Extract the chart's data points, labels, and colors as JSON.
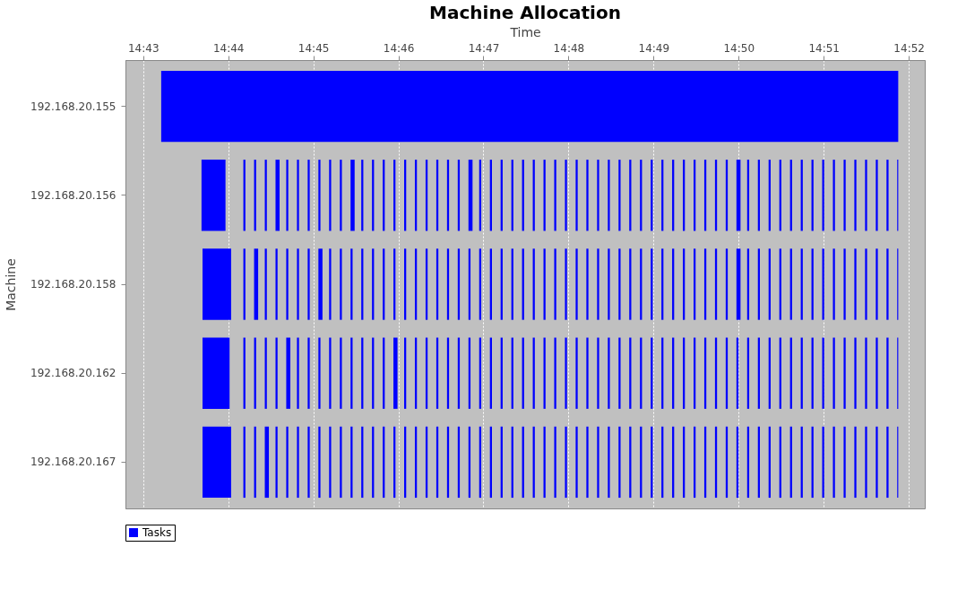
{
  "chart_data": {
    "type": "bar",
    "orientation": "horizontal",
    "title": "Machine Allocation",
    "xlabel": "Time",
    "ylabel": "Machine",
    "categories": [
      "192.168.20.155",
      "192.168.20.156",
      "192.168.20.158",
      "192.168.20.162",
      "192.168.20.167"
    ],
    "xlim": [
      14.7132,
      14.8698
    ],
    "xticks": [
      {
        "value": 14.716667,
        "label": "14:43"
      },
      {
        "value": 14.733333,
        "label": "14:44"
      },
      {
        "value": 14.75,
        "label": "14:45"
      },
      {
        "value": 14.766667,
        "label": "14:46"
      },
      {
        "value": 14.783333,
        "label": "14:47"
      },
      {
        "value": 14.8,
        "label": "14:48"
      },
      {
        "value": 14.816667,
        "label": "14:49"
      },
      {
        "value": 14.833333,
        "label": "14:50"
      },
      {
        "value": 14.85,
        "label": "14:51"
      },
      {
        "value": 14.866667,
        "label": "14:52"
      }
    ],
    "grid": "x",
    "legend": "bottom",
    "series": [
      {
        "name": "Tasks",
        "color": "#0000ff",
        "base": [
          14.7202,
          14.7281,
          14.7283,
          14.7283,
          14.7283
        ],
        "values": [
          0.1444,
          0.0047,
          0.0056,
          0.0053,
          0.0056
        ]
      },
      {
        "color": "#0000ff",
        "base": [
          null,
          14.7363,
          14.7363,
          14.7363,
          14.7363
        ],
        "values": [
          null,
          0.0004,
          0.0004,
          0.0004,
          0.0004
        ]
      },
      {
        "color": "#0000ff",
        "base": [
          null,
          14.7384,
          14.7384,
          14.7384,
          14.7384
        ],
        "values": [
          null,
          0.0004,
          0.0008,
          0.0004,
          0.0004
        ]
      },
      {
        "color": "#0000ff",
        "base": [
          null,
          14.7405,
          14.7405,
          14.7405,
          14.7405
        ],
        "values": [
          null,
          0.0004,
          0.0004,
          0.0004,
          0.0008
        ]
      },
      {
        "color": "#0000ff",
        "base": [
          null,
          14.7426,
          14.7426,
          14.7426,
          14.7426
        ],
        "values": [
          null,
          0.0008,
          0.0004,
          0.0004,
          0.0004
        ]
      },
      {
        "color": "#0000ff",
        "base": [
          null,
          14.7447,
          14.7447,
          14.7447,
          14.7447
        ],
        "values": [
          null,
          0.0004,
          0.0004,
          0.0008,
          0.0004
        ]
      },
      {
        "color": "#0000ff",
        "base": [
          null,
          14.7468,
          14.7468,
          14.7468,
          14.7468
        ],
        "values": [
          null,
          0.0004,
          0.0004,
          0.0004,
          0.0004
        ]
      },
      {
        "color": "#0000ff",
        "base": [
          null,
          14.7489,
          14.7489,
          14.7489,
          14.7489
        ],
        "values": [
          null,
          0.0004,
          0.0004,
          0.0004,
          0.0004
        ]
      },
      {
        "color": "#0000ff",
        "base": [
          null,
          14.751,
          14.751,
          14.751,
          14.751
        ],
        "values": [
          null,
          0.0004,
          0.0008,
          0.0004,
          0.0004
        ]
      },
      {
        "color": "#0000ff",
        "base": [
          null,
          14.7531,
          14.7531,
          14.7531,
          14.7531
        ],
        "values": [
          null,
          0.0004,
          0.0004,
          0.0004,
          0.0004
        ]
      },
      {
        "color": "#0000ff",
        "base": [
          null,
          14.7552,
          14.7552,
          14.7552,
          14.7552
        ],
        "values": [
          null,
          0.0004,
          0.0004,
          0.0004,
          0.0004
        ]
      },
      {
        "color": "#0000ff",
        "base": [
          null,
          14.7573,
          14.7573,
          14.7573,
          14.7573
        ],
        "values": [
          null,
          0.0008,
          0.0004,
          0.0004,
          0.0004
        ]
      },
      {
        "color": "#0000ff",
        "base": [
          null,
          14.7594,
          14.7594,
          14.7594,
          14.7594
        ],
        "values": [
          null,
          0.0004,
          0.0004,
          0.0004,
          0.0004
        ]
      },
      {
        "color": "#0000ff",
        "base": [
          null,
          14.7615,
          14.7615,
          14.7615,
          14.7615
        ],
        "values": [
          null,
          0.0004,
          0.0004,
          0.0004,
          0.0004
        ]
      },
      {
        "color": "#0000ff",
        "base": [
          null,
          14.7636,
          14.7636,
          14.7636,
          14.7636
        ],
        "values": [
          null,
          0.0004,
          0.0004,
          0.0004,
          0.0004
        ]
      },
      {
        "color": "#0000ff",
        "base": [
          null,
          14.7657,
          14.7657,
          14.7657,
          14.7657
        ],
        "values": [
          null,
          0.0004,
          0.0004,
          0.0008,
          0.0004
        ]
      },
      {
        "color": "#0000ff",
        "base": [
          null,
          14.7678,
          14.7678,
          14.7678,
          14.7678
        ],
        "values": [
          null,
          0.0004,
          0.0004,
          0.0004,
          0.0004
        ]
      },
      {
        "color": "#0000ff",
        "base": [
          null,
          14.7699,
          14.7699,
          14.7699,
          14.7699
        ],
        "values": [
          null,
          0.0004,
          0.0004,
          0.0004,
          0.0004
        ]
      },
      {
        "color": "#0000ff",
        "base": [
          null,
          14.772,
          14.772,
          14.772,
          14.772
        ],
        "values": [
          null,
          0.0004,
          0.0004,
          0.0004,
          0.0004
        ]
      },
      {
        "color": "#0000ff",
        "base": [
          null,
          14.7741,
          14.7741,
          14.7741,
          14.7741
        ],
        "values": [
          null,
          0.0004,
          0.0004,
          0.0004,
          0.0004
        ]
      },
      {
        "color": "#0000ff",
        "base": [
          null,
          14.7762,
          14.7762,
          14.7762,
          14.7762
        ],
        "values": [
          null,
          0.0004,
          0.0004,
          0.0004,
          0.0004
        ]
      },
      {
        "color": "#0000ff",
        "base": [
          null,
          14.7783,
          14.7783,
          14.7783,
          14.7783
        ],
        "values": [
          null,
          0.0004,
          0.0004,
          0.0004,
          0.0004
        ]
      },
      {
        "color": "#0000ff",
        "base": [
          null,
          14.7804,
          14.7804,
          14.7804,
          14.7804
        ],
        "values": [
          null,
          0.0008,
          0.0004,
          0.0004,
          0.0004
        ]
      },
      {
        "color": "#0000ff",
        "base": [
          null,
          14.7825,
          14.7825,
          14.7825,
          14.7825
        ],
        "values": [
          null,
          0.0004,
          0.0004,
          0.0004,
          0.0004
        ]
      },
      {
        "color": "#0000ff",
        "base": [
          null,
          14.7846,
          14.7846,
          14.7846,
          14.7846
        ],
        "values": [
          null,
          0.0004,
          0.0004,
          0.0004,
          0.0004
        ]
      },
      {
        "color": "#0000ff",
        "base": [
          null,
          14.7867,
          14.7867,
          14.7867,
          14.7867
        ],
        "values": [
          null,
          0.0004,
          0.0004,
          0.0004,
          0.0004
        ]
      },
      {
        "color": "#0000ff",
        "base": [
          null,
          14.7888,
          14.7888,
          14.7888,
          14.7888
        ],
        "values": [
          null,
          0.0004,
          0.0004,
          0.0004,
          0.0004
        ]
      },
      {
        "color": "#0000ff",
        "base": [
          null,
          14.7909,
          14.7909,
          14.7909,
          14.7909
        ],
        "values": [
          null,
          0.0004,
          0.0004,
          0.0004,
          0.0004
        ]
      },
      {
        "color": "#0000ff",
        "base": [
          null,
          14.793,
          14.793,
          14.793,
          14.793
        ],
        "values": [
          null,
          0.0004,
          0.0004,
          0.0004,
          0.0004
        ]
      },
      {
        "color": "#0000ff",
        "base": [
          null,
          14.7951,
          14.7951,
          14.7951,
          14.7951
        ],
        "values": [
          null,
          0.0004,
          0.0004,
          0.0004,
          0.0004
        ]
      },
      {
        "color": "#0000ff",
        "base": [
          null,
          14.7972,
          14.7972,
          14.7972,
          14.7972
        ],
        "values": [
          null,
          0.0004,
          0.0004,
          0.0004,
          0.0004
        ]
      },
      {
        "color": "#0000ff",
        "base": [
          null,
          14.7993,
          14.7993,
          14.7993,
          14.7993
        ],
        "values": [
          null,
          0.0004,
          0.0004,
          0.0004,
          0.0004
        ]
      },
      {
        "color": "#0000ff",
        "base": [
          null,
          14.8014,
          14.8014,
          14.8014,
          14.8014
        ],
        "values": [
          null,
          0.0004,
          0.0004,
          0.0004,
          0.0004
        ]
      },
      {
        "color": "#0000ff",
        "base": [
          null,
          14.8035,
          14.8035,
          14.8035,
          14.8035
        ],
        "values": [
          null,
          0.0004,
          0.0004,
          0.0004,
          0.0004
        ]
      },
      {
        "color": "#0000ff",
        "base": [
          null,
          14.8056,
          14.8056,
          14.8056,
          14.8056
        ],
        "values": [
          null,
          0.0004,
          0.0004,
          0.0004,
          0.0004
        ]
      },
      {
        "color": "#0000ff",
        "base": [
          null,
          14.8077,
          14.8077,
          14.8077,
          14.8077
        ],
        "values": [
          null,
          0.0004,
          0.0004,
          0.0004,
          0.0004
        ]
      },
      {
        "color": "#0000ff",
        "base": [
          null,
          14.8098,
          14.8098,
          14.8098,
          14.8098
        ],
        "values": [
          null,
          0.0004,
          0.0004,
          0.0004,
          0.0004
        ]
      },
      {
        "color": "#0000ff",
        "base": [
          null,
          14.8119,
          14.8119,
          14.8119,
          14.8119
        ],
        "values": [
          null,
          0.0004,
          0.0004,
          0.0004,
          0.0004
        ]
      },
      {
        "color": "#0000ff",
        "base": [
          null,
          14.814,
          14.814,
          14.814,
          14.814
        ],
        "values": [
          null,
          0.0004,
          0.0004,
          0.0004,
          0.0004
        ]
      },
      {
        "color": "#0000ff",
        "base": [
          null,
          14.8161,
          14.8161,
          14.8161,
          14.8161
        ],
        "values": [
          null,
          0.0004,
          0.0004,
          0.0004,
          0.0004
        ]
      },
      {
        "color": "#0000ff",
        "base": [
          null,
          14.8182,
          14.8182,
          14.8182,
          14.8182
        ],
        "values": [
          null,
          0.0004,
          0.0004,
          0.0004,
          0.0004
        ]
      },
      {
        "color": "#0000ff",
        "base": [
          null,
          14.8203,
          14.8203,
          14.8203,
          14.8203
        ],
        "values": [
          null,
          0.0004,
          0.0004,
          0.0004,
          0.0004
        ]
      },
      {
        "color": "#0000ff",
        "base": [
          null,
          14.8224,
          14.8224,
          14.8224,
          14.8224
        ],
        "values": [
          null,
          0.0004,
          0.0004,
          0.0004,
          0.0004
        ]
      },
      {
        "color": "#0000ff",
        "base": [
          null,
          14.8245,
          14.8245,
          14.8245,
          14.8245
        ],
        "values": [
          null,
          0.0004,
          0.0004,
          0.0004,
          0.0004
        ]
      },
      {
        "color": "#0000ff",
        "base": [
          null,
          14.8266,
          14.8266,
          14.8266,
          14.8266
        ],
        "values": [
          null,
          0.0004,
          0.0004,
          0.0004,
          0.0004
        ]
      },
      {
        "color": "#0000ff",
        "base": [
          null,
          14.8287,
          14.8287,
          14.8287,
          14.8287
        ],
        "values": [
          null,
          0.0004,
          0.0004,
          0.0004,
          0.0004
        ]
      },
      {
        "color": "#0000ff",
        "base": [
          null,
          14.8308,
          14.8308,
          14.8308,
          14.8308
        ],
        "values": [
          null,
          0.0004,
          0.0004,
          0.0004,
          0.0004
        ]
      },
      {
        "color": "#0000ff",
        "base": [
          null,
          14.8329,
          14.8329,
          14.8329,
          14.8329
        ],
        "values": [
          null,
          0.0008,
          0.0008,
          0.0004,
          0.0004
        ]
      },
      {
        "color": "#0000ff",
        "base": [
          null,
          14.835,
          14.835,
          14.835,
          14.835
        ],
        "values": [
          null,
          0.0004,
          0.0004,
          0.0004,
          0.0004
        ]
      },
      {
        "color": "#0000ff",
        "base": [
          null,
          14.8371,
          14.8371,
          14.8371,
          14.8371
        ],
        "values": [
          null,
          0.0004,
          0.0004,
          0.0004,
          0.0004
        ]
      },
      {
        "color": "#0000ff",
        "base": [
          null,
          14.8392,
          14.8392,
          14.8392,
          14.8392
        ],
        "values": [
          null,
          0.0004,
          0.0004,
          0.0004,
          0.0004
        ]
      },
      {
        "color": "#0000ff",
        "base": [
          null,
          14.8413,
          14.8413,
          14.8413,
          14.8413
        ],
        "values": [
          null,
          0.0004,
          0.0004,
          0.0004,
          0.0004
        ]
      },
      {
        "color": "#0000ff",
        "base": [
          null,
          14.8434,
          14.8434,
          14.8434,
          14.8434
        ],
        "values": [
          null,
          0.0004,
          0.0004,
          0.0004,
          0.0004
        ]
      },
      {
        "color": "#0000ff",
        "base": [
          null,
          14.8455,
          14.8455,
          14.8455,
          14.8455
        ],
        "values": [
          null,
          0.0004,
          0.0004,
          0.0004,
          0.0004
        ]
      },
      {
        "color": "#0000ff",
        "base": [
          null,
          14.8476,
          14.8476,
          14.8476,
          14.8476
        ],
        "values": [
          null,
          0.0004,
          0.0004,
          0.0004,
          0.0004
        ]
      },
      {
        "color": "#0000ff",
        "base": [
          null,
          14.8497,
          14.8497,
          14.8497,
          14.8497
        ],
        "values": [
          null,
          0.0004,
          0.0004,
          0.0004,
          0.0004
        ]
      },
      {
        "color": "#0000ff",
        "base": [
          null,
          14.8518,
          14.8518,
          14.8518,
          14.8518
        ],
        "values": [
          null,
          0.0004,
          0.0004,
          0.0004,
          0.0004
        ]
      },
      {
        "color": "#0000ff",
        "base": [
          null,
          14.8539,
          14.8539,
          14.8539,
          14.8539
        ],
        "values": [
          null,
          0.0004,
          0.0004,
          0.0004,
          0.0004
        ]
      },
      {
        "color": "#0000ff",
        "base": [
          null,
          14.856,
          14.856,
          14.856,
          14.856
        ],
        "values": [
          null,
          0.0004,
          0.0004,
          0.0004,
          0.0004
        ]
      },
      {
        "color": "#0000ff",
        "base": [
          null,
          14.8581,
          14.8581,
          14.8581,
          14.8581
        ],
        "values": [
          null,
          0.0004,
          0.0004,
          0.0004,
          0.0004
        ]
      },
      {
        "color": "#0000ff",
        "base": [
          null,
          14.8602,
          14.8602,
          14.8602,
          14.8602
        ],
        "values": [
          null,
          0.0004,
          0.0004,
          0.0004,
          0.0004
        ]
      },
      {
        "color": "#0000ff",
        "base": [
          null,
          14.8623,
          14.8623,
          14.8623,
          14.8623
        ],
        "values": [
          null,
          0.0004,
          0.0004,
          0.0004,
          0.0004
        ]
      },
      {
        "color": "#0000ff",
        "base": [
          null,
          14.8644,
          14.8644,
          14.8644,
          14.8644
        ],
        "values": [
          null,
          0.0002,
          0.0002,
          0.0002,
          0.0002
        ]
      }
    ]
  }
}
